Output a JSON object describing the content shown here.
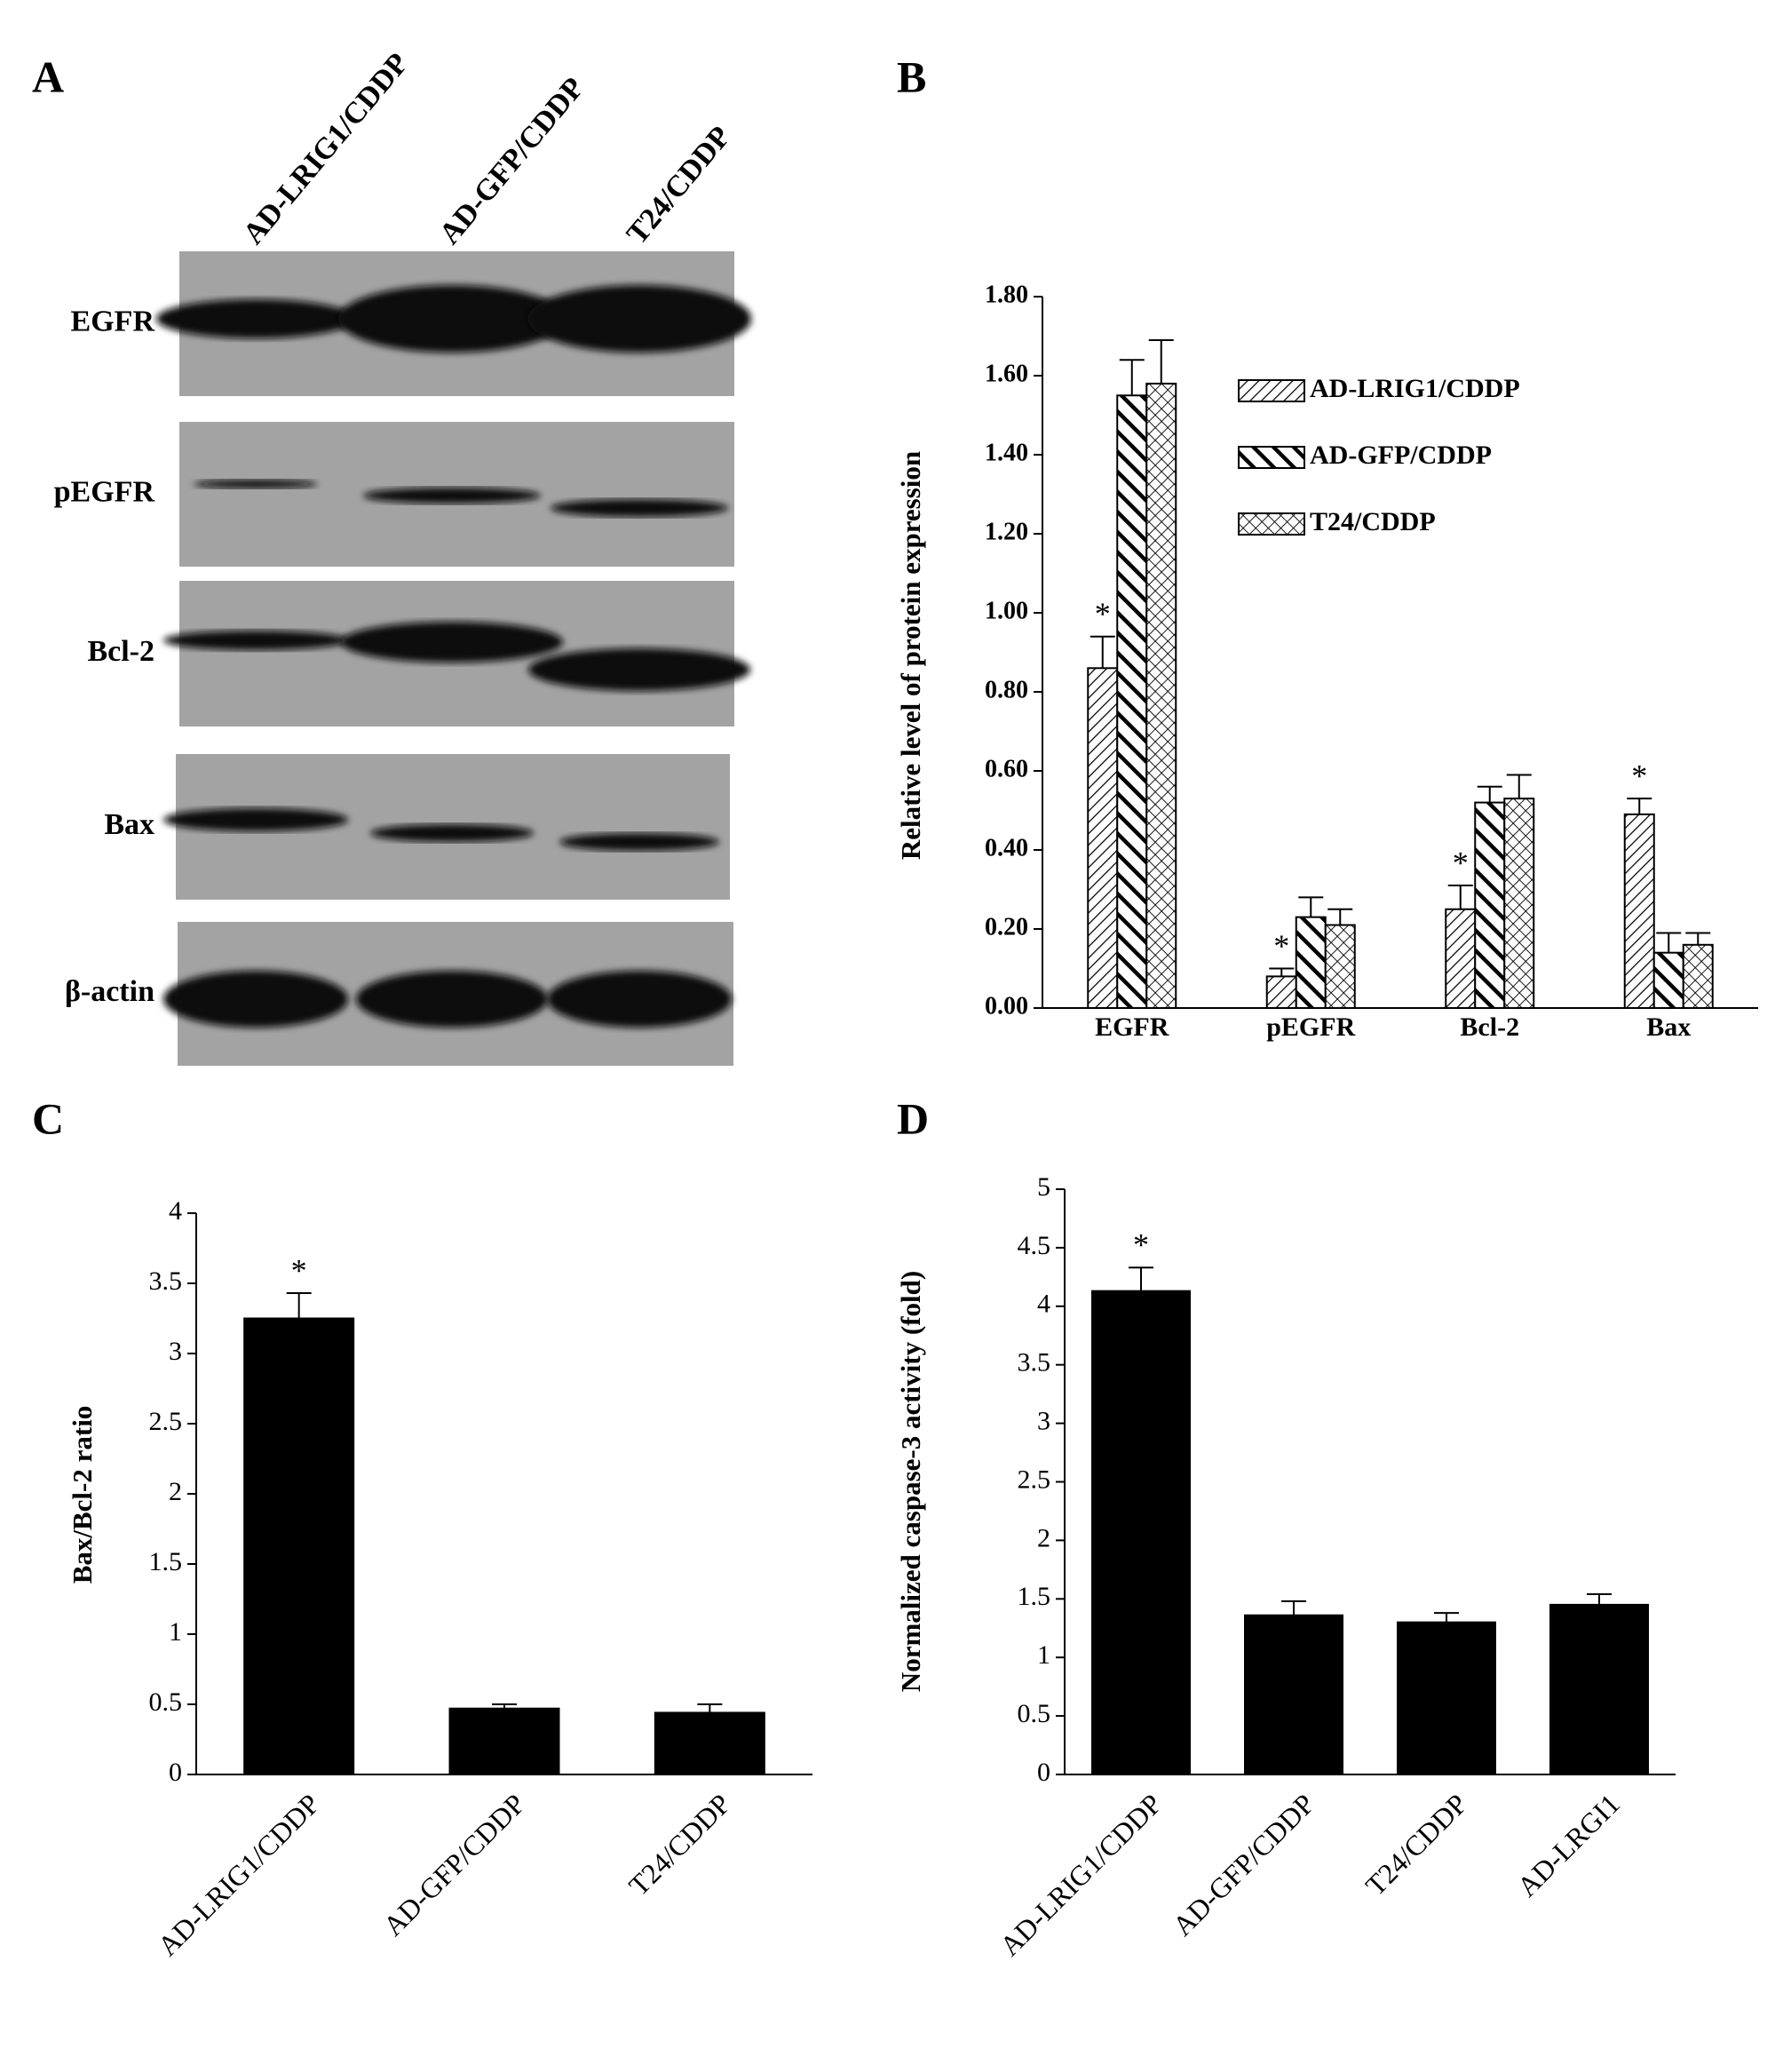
{
  "blot": {
    "panel_label": "A",
    "lanes": [
      "AD-LRIG1/CDDP",
      "AD-GFP/CDDP",
      "T24/CDDP"
    ],
    "rows": [
      "EGFR",
      "pEGFR",
      "Bcl-2",
      "Bax",
      "β-actin"
    ]
  },
  "chart_data": [
    {
      "type": "grouped_bar",
      "panel_label": "B",
      "y_label": "Relative  level of protein expression",
      "categories": [
        "EGFR",
        "pEGFR",
        "Bcl-2",
        "Bax"
      ],
      "series": [
        {
          "name": "AD-LRIG1/CDDP",
          "color": "#000000",
          "pattern": "light-hatch",
          "values": [
            0.86,
            0.08,
            0.25,
            0.49
          ],
          "errors": [
            0.08,
            0.02,
            0.06,
            0.04
          ],
          "significance": [
            "*",
            "*",
            "*",
            "*"
          ]
        },
        {
          "name": "AD-GFP/CDDP",
          "color": "#000000",
          "pattern": "bold-stripe",
          "values": [
            1.55,
            0.23,
            0.52,
            0.14
          ],
          "errors": [
            0.09,
            0.05,
            0.04,
            0.05
          ]
        },
        {
          "name": "T24/CDDP",
          "color": "#000000",
          "pattern": "crosshatch",
          "values": [
            1.58,
            0.21,
            0.53,
            0.16
          ],
          "errors": [
            0.11,
            0.04,
            0.06,
            0.03
          ]
        }
      ],
      "ylim": [
        0,
        1.8
      ],
      "yticks": [
        {
          "value": 0,
          "label": "0.00"
        },
        {
          "value": 0.2,
          "label": "0.20"
        },
        {
          "value": 0.4,
          "label": "0.40"
        },
        {
          "value": 0.6,
          "label": "0.60"
        },
        {
          "value": 0.8,
          "label": "0.80"
        },
        {
          "value": 1,
          "label": "1.00"
        },
        {
          "value": 1.2,
          "label": "1.20"
        },
        {
          "value": 1.4,
          "label": "1.40"
        },
        {
          "value": 1.6,
          "label": "1.60"
        },
        {
          "value": 1.8,
          "label": "1.80"
        }
      ],
      "legend": "upper-right"
    },
    {
      "type": "bar",
      "panel_label": "C",
      "y_label": "Bax/Bcl-2 ratio",
      "categories": [
        "AD-LRIG1/CDDP",
        "AD-GFP/CDDP",
        "T24/CDDP"
      ],
      "values": [
        3.25,
        0.47,
        0.44
      ],
      "errors": [
        0.18,
        0.03,
        0.06
      ],
      "significance": [
        "*",
        null,
        null
      ],
      "color": "#000000",
      "ylim": [
        0,
        4
      ],
      "yticks": [
        0,
        0.5,
        1,
        1.5,
        2,
        2.5,
        3,
        3.5,
        4
      ]
    },
    {
      "type": "bar",
      "panel_label": "D",
      "y_label": "Normalized caspase-3 activity (fold)",
      "categories": [
        "AD-LRIG1/CDDP",
        "AD-GFP/CDDP",
        "T24/CDDP",
        "AD-LRGI1"
      ],
      "values": [
        4.13,
        1.36,
        1.3,
        1.45
      ],
      "errors": [
        0.2,
        0.12,
        0.08,
        0.09
      ],
      "significance": [
        "*",
        null,
        null,
        null
      ],
      "color": "#000000",
      "ylim": [
        0,
        5
      ],
      "yticks": [
        0,
        0.5,
        1,
        1.5,
        2,
        2.5,
        3,
        3.5,
        4,
        4.5,
        5
      ]
    }
  ]
}
